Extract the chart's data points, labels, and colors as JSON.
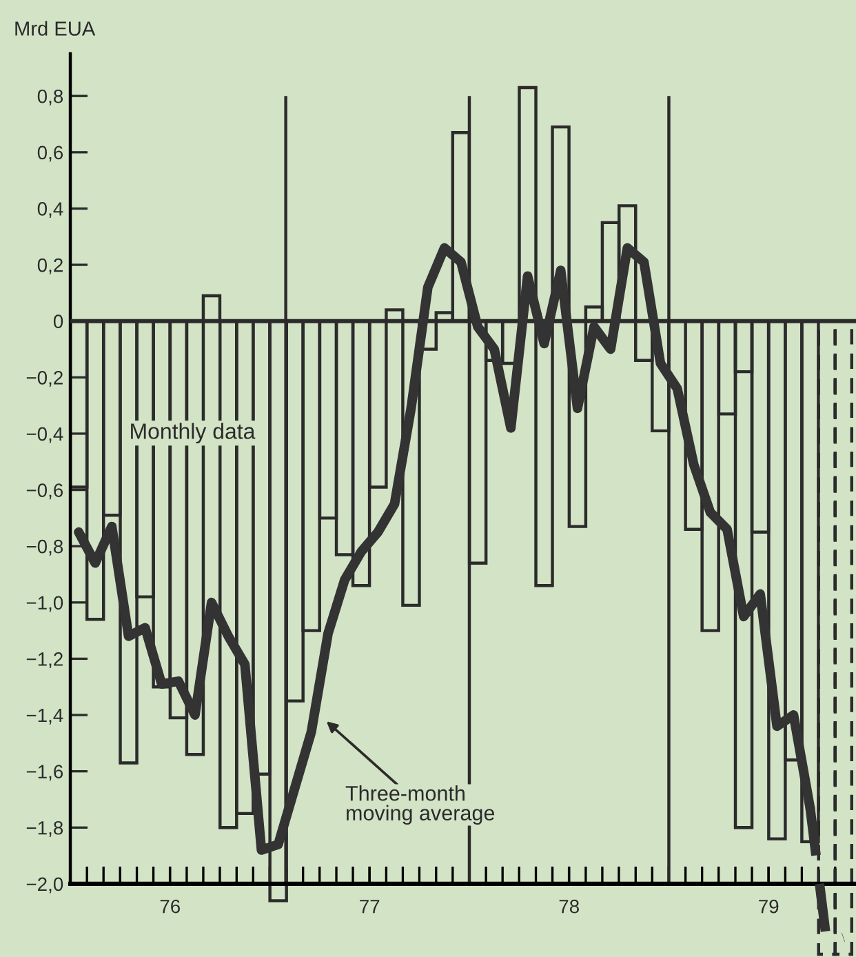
{
  "chart_data": {
    "type": "bar",
    "ylabel": "Mrd EUA",
    "x": [
      75.542,
      75.625,
      75.708,
      75.792,
      75.875,
      75.958,
      76.042,
      76.125,
      76.208,
      76.292,
      76.375,
      76.458,
      76.542,
      76.625,
      76.708,
      76.792,
      76.875,
      76.958,
      77.042,
      77.125,
      77.208,
      77.292,
      77.375,
      77.458,
      77.542,
      77.625,
      77.708,
      77.792,
      77.875,
      77.958,
      78.042,
      78.125,
      78.208,
      78.292,
      78.375,
      78.458,
      78.542,
      78.625,
      78.708,
      78.792,
      78.875,
      78.958,
      79.042,
      79.125,
      79.208
    ],
    "series": [
      {
        "color": "#2b2b2b",
        "values": [
          -0.59,
          -1.06,
          -0.69,
          -1.57,
          -0.98,
          -1.3,
          -1.41,
          -1.54,
          0.09,
          -1.8,
          -1.75,
          -1.61,
          -2.06,
          -1.35,
          -1.1,
          -0.7,
          -0.83,
          -0.94,
          -0.59,
          0.04,
          -1.01,
          -0.1,
          0.03,
          0.67,
          -0.86,
          -0.14,
          -0.15,
          0.83,
          -0.94,
          0.69,
          -0.73,
          0.05,
          0.35,
          0.41,
          -0.14,
          -0.39,
          null,
          -0.74,
          -1.1,
          -0.33,
          -1.8,
          -0.75,
          -1.84,
          -1.56,
          -1.85
        ]
      },
      {
        "color": "#2b2b2b",
        "x": [
          78.875
        ],
        "values": [
          -0.18
        ]
      },
      {
        "color": "#2b2b2b",
        "line_style": "dashed",
        "x": [
          79.292,
          79.375
        ],
        "values": [
          -2.25,
          -2.25
        ]
      },
      {
        "type": "line",
        "color": "#333333",
        "values": [
          -0.75,
          -0.86,
          -0.73,
          -1.12,
          -1.09,
          -1.29,
          -1.28,
          -1.4,
          -1.0,
          -1.12,
          -1.22,
          -1.88,
          -1.86,
          -1.66,
          -1.46,
          -1.11,
          -0.92,
          -0.82,
          -0.75,
          -0.65,
          -0.31,
          0.12,
          0.26,
          0.21,
          -0.02,
          -0.1,
          -0.38,
          0.16,
          -0.08,
          0.18,
          -0.31,
          -0.02,
          -0.1,
          0.26,
          0.21,
          -0.15,
          -0.24,
          -0.51,
          -0.68,
          -0.74,
          -1.05,
          -0.97,
          -1.44,
          -1.4,
          -1.73
        ]
      },
      {
        "type": "line",
        "color": "#333333",
        "line_style": "dashed",
        "x": [
          79.208,
          79.292,
          79.375
        ],
        "values": [
          -1.73,
          -2.21,
          -2.19
        ]
      }
    ],
    "xlim": [
      75.5,
      79.438
    ],
    "ylim": [
      -2.26,
      0.95
    ],
    "xticks": [
      76,
      77,
      78,
      79
    ],
    "yticks": [
      {
        "value": 0.8,
        "label": "0,8"
      },
      {
        "value": 0.6,
        "label": "0,6"
      },
      {
        "value": 0.4,
        "label": "0,4"
      },
      {
        "value": 0.2,
        "label": "0,2"
      },
      0,
      {
        "value": -0.2,
        "label": "−0,2"
      },
      {
        "value": -0.4,
        "label": "−0,4"
      },
      {
        "value": -0.6,
        "label": "−0,6"
      },
      {
        "value": -0.8,
        "label": "−0,8"
      },
      {
        "value": -1.0,
        "label": "−1,0"
      },
      {
        "value": -1.2,
        "label": "−1,2"
      },
      {
        "value": -1.4,
        "label": "−1,4"
      },
      {
        "value": -1.6,
        "label": "−1,6"
      },
      {
        "value": -1.8,
        "label": "−1,8"
      },
      {
        "value": -2.0,
        "label": "−2,0"
      }
    ],
    "ref_lines": [
      {
        "axis": "y",
        "value": 0,
        "color": "#2b2b2b"
      },
      {
        "axis": "x",
        "value": 76.58,
        "color": "#2b2b2b"
      },
      {
        "axis": "x",
        "value": 77.5,
        "color": "#2b2b2b"
      },
      {
        "axis": "x",
        "value": 78.5,
        "color": "#2b2b2b"
      }
    ],
    "annotations": [
      "Monthly data",
      "Three-month\nmoving average"
    ],
    "grid": false,
    "legend": false
  }
}
